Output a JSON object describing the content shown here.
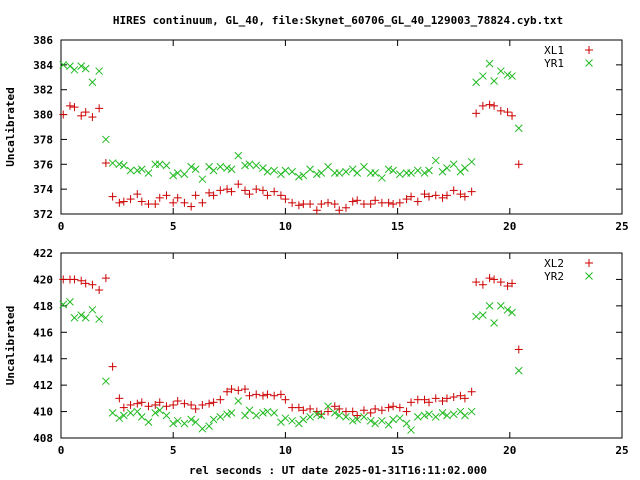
{
  "title": "HIRES continuum, GL_40, file:Skynet_60706_GL_40_129003_78824.cyb.txt",
  "xlabel": "rel seconds : UT date 2025-01-31T16:11:02.000",
  "colors": {
    "red": "#cc0000",
    "green": "#22bb22"
  },
  "chart_data": [
    {
      "type": "scatter",
      "ylabel": "Uncalibrated",
      "xlim": [
        0,
        25
      ],
      "ylim": [
        372,
        386
      ],
      "xticks": [
        0,
        5,
        10,
        15,
        20,
        25
      ],
      "yticks": [
        372,
        374,
        376,
        378,
        380,
        382,
        384,
        386
      ],
      "legend": "top-right",
      "series": [
        {
          "name": "XL1",
          "marker": "plus",
          "color": "#cc0000",
          "x": [
            0.1,
            0.4,
            0.6,
            0.9,
            1.1,
            1.4,
            1.7,
            2.0,
            2.3,
            2.6,
            2.8,
            3.1,
            3.4,
            3.6,
            3.9,
            4.2,
            4.4,
            4.7,
            5.0,
            5.2,
            5.5,
            5.8,
            6.0,
            6.3,
            6.6,
            6.8,
            7.1,
            7.4,
            7.6,
            7.9,
            8.2,
            8.4,
            8.7,
            9.0,
            9.2,
            9.5,
            9.8,
            10.0,
            10.3,
            10.6,
            10.8,
            11.1,
            11.4,
            11.6,
            11.9,
            12.2,
            12.4,
            12.7,
            13.0,
            13.2,
            13.5,
            13.8,
            14.0,
            14.3,
            14.6,
            14.8,
            15.1,
            15.4,
            15.6,
            15.9,
            16.2,
            16.4,
            16.7,
            17.0,
            17.2,
            17.5,
            17.8,
            18.0,
            18.3,
            18.5,
            18.8,
            19.1,
            19.3,
            19.6,
            19.9,
            20.1,
            20.4
          ],
          "y": [
            380.0,
            380.7,
            380.6,
            379.9,
            380.2,
            379.8,
            380.5,
            376.1,
            373.4,
            372.9,
            373.0,
            373.2,
            373.6,
            373.0,
            372.8,
            372.8,
            373.3,
            373.5,
            372.9,
            373.3,
            372.9,
            372.6,
            373.5,
            372.9,
            373.7,
            373.5,
            373.9,
            374.0,
            373.8,
            374.4,
            373.9,
            373.6,
            374.0,
            373.9,
            373.5,
            373.8,
            373.5,
            373.2,
            372.9,
            372.7,
            372.8,
            372.8,
            372.3,
            372.8,
            372.9,
            372.8,
            372.3,
            372.5,
            373.0,
            373.1,
            372.8,
            372.8,
            373.1,
            372.9,
            372.9,
            372.8,
            372.9,
            373.2,
            373.4,
            373.0,
            373.6,
            373.4,
            373.5,
            373.3,
            373.5,
            373.9,
            373.6,
            373.4,
            373.8,
            380.1,
            380.7,
            380.8,
            380.7,
            380.3,
            380.2,
            379.9,
            376.0
          ]
        },
        {
          "name": "YR1",
          "marker": "cross",
          "color": "#22bb22",
          "x": [
            0.1,
            0.4,
            0.6,
            0.9,
            1.1,
            1.4,
            1.7,
            2.0,
            2.3,
            2.6,
            2.8,
            3.1,
            3.4,
            3.6,
            3.9,
            4.2,
            4.4,
            4.7,
            5.0,
            5.2,
            5.5,
            5.8,
            6.0,
            6.3,
            6.6,
            6.8,
            7.1,
            7.4,
            7.6,
            7.9,
            8.2,
            8.4,
            8.7,
            9.0,
            9.2,
            9.5,
            9.8,
            10.0,
            10.3,
            10.6,
            10.8,
            11.1,
            11.4,
            11.6,
            11.9,
            12.2,
            12.4,
            12.7,
            13.0,
            13.2,
            13.5,
            13.8,
            14.0,
            14.3,
            14.6,
            14.8,
            15.1,
            15.4,
            15.6,
            15.9,
            16.2,
            16.4,
            16.7,
            17.0,
            17.2,
            17.5,
            17.8,
            18.0,
            18.3,
            18.5,
            18.8,
            19.1,
            19.3,
            19.6,
            19.9,
            20.1,
            20.4
          ],
          "y": [
            384.0,
            383.9,
            383.6,
            383.9,
            383.7,
            382.6,
            383.5,
            378.0,
            376.1,
            376.0,
            375.9,
            375.5,
            375.5,
            375.6,
            375.3,
            376.0,
            376.0,
            375.9,
            375.1,
            375.3,
            375.2,
            375.8,
            375.6,
            374.8,
            375.8,
            375.5,
            375.8,
            375.7,
            375.6,
            376.7,
            375.9,
            376.0,
            375.9,
            375.7,
            375.4,
            375.5,
            375.2,
            375.5,
            375.4,
            375.0,
            375.1,
            375.6,
            375.2,
            375.3,
            375.8,
            375.3,
            375.3,
            375.4,
            375.6,
            375.3,
            375.8,
            375.3,
            375.3,
            374.9,
            375.6,
            375.5,
            375.2,
            375.3,
            375.3,
            375.5,
            375.3,
            375.5,
            376.3,
            375.4,
            375.7,
            376.0,
            375.4,
            375.7,
            376.2,
            382.6,
            383.1,
            384.1,
            382.7,
            383.5,
            383.2,
            383.1,
            378.9
          ]
        }
      ]
    },
    {
      "type": "scatter",
      "ylabel": "Uncalibrated",
      "xlim": [
        0,
        25
      ],
      "ylim": [
        408,
        422
      ],
      "xticks": [
        0,
        5,
        10,
        15,
        20,
        25
      ],
      "yticks": [
        408,
        410,
        412,
        414,
        416,
        418,
        420,
        422
      ],
      "legend": "top-right",
      "series": [
        {
          "name": "XL2",
          "marker": "plus",
          "color": "#cc0000",
          "x": [
            0.1,
            0.4,
            0.6,
            0.9,
            1.1,
            1.4,
            1.7,
            2.0,
            2.3,
            2.6,
            2.8,
            3.1,
            3.4,
            3.6,
            3.9,
            4.2,
            4.4,
            4.7,
            5.0,
            5.2,
            5.5,
            5.8,
            6.0,
            6.3,
            6.6,
            6.8,
            7.1,
            7.4,
            7.6,
            7.9,
            8.2,
            8.4,
            8.7,
            9.0,
            9.2,
            9.5,
            9.8,
            10.0,
            10.3,
            10.6,
            10.8,
            11.1,
            11.4,
            11.6,
            11.9,
            12.2,
            12.4,
            12.7,
            13.0,
            13.2,
            13.5,
            13.8,
            14.0,
            14.3,
            14.6,
            14.8,
            15.1,
            15.4,
            15.6,
            15.9,
            16.2,
            16.4,
            16.7,
            17.0,
            17.2,
            17.5,
            17.8,
            18.0,
            18.3,
            18.5,
            18.8,
            19.1,
            19.3,
            19.6,
            19.9,
            20.1,
            20.4
          ],
          "y": [
            420.0,
            420.0,
            420.0,
            419.9,
            419.7,
            419.6,
            419.2,
            420.1,
            413.4,
            411.0,
            410.3,
            410.5,
            410.6,
            410.7,
            410.4,
            410.5,
            410.7,
            410.4,
            410.5,
            410.8,
            410.6,
            410.5,
            410.2,
            410.5,
            410.6,
            410.7,
            410.9,
            411.5,
            411.7,
            411.6,
            411.7,
            411.2,
            411.3,
            411.2,
            411.3,
            411.2,
            411.3,
            410.9,
            410.3,
            410.3,
            410.1,
            410.2,
            410.0,
            409.8,
            410.0,
            410.4,
            410.2,
            410.0,
            410.0,
            409.7,
            410.1,
            409.9,
            410.2,
            410.1,
            410.3,
            410.4,
            410.3,
            410.0,
            410.7,
            410.9,
            410.9,
            410.7,
            411.0,
            410.8,
            411.0,
            411.1,
            411.2,
            411.0,
            411.5,
            419.8,
            419.6,
            420.1,
            420.0,
            419.8,
            419.5,
            419.7,
            414.7
          ]
        },
        {
          "name": "YR2",
          "marker": "cross",
          "color": "#22bb22",
          "x": [
            0.1,
            0.4,
            0.6,
            0.9,
            1.1,
            1.4,
            1.7,
            2.0,
            2.3,
            2.6,
            2.8,
            3.1,
            3.4,
            3.6,
            3.9,
            4.2,
            4.4,
            4.7,
            5.0,
            5.2,
            5.5,
            5.8,
            6.0,
            6.3,
            6.6,
            6.8,
            7.1,
            7.4,
            7.6,
            7.9,
            8.2,
            8.4,
            8.7,
            9.0,
            9.2,
            9.5,
            9.8,
            10.0,
            10.3,
            10.6,
            10.8,
            11.1,
            11.4,
            11.6,
            11.9,
            12.2,
            12.4,
            12.7,
            13.0,
            13.2,
            13.5,
            13.8,
            14.0,
            14.3,
            14.6,
            14.8,
            15.1,
            15.4,
            15.6,
            15.9,
            16.2,
            16.4,
            16.7,
            17.0,
            17.2,
            17.5,
            17.8,
            18.0,
            18.3,
            18.5,
            18.8,
            19.1,
            19.3,
            19.6,
            19.9,
            20.1,
            20.4
          ],
          "y": [
            418.1,
            418.3,
            417.1,
            417.3,
            417.1,
            417.7,
            417.0,
            412.3,
            409.9,
            409.5,
            409.7,
            409.9,
            410.0,
            409.6,
            409.2,
            409.9,
            410.1,
            409.7,
            409.1,
            409.3,
            409.1,
            409.4,
            409.2,
            408.7,
            408.9,
            409.4,
            409.6,
            409.8,
            409.9,
            410.8,
            409.7,
            410.1,
            409.7,
            409.9,
            410.0,
            409.9,
            409.2,
            409.5,
            409.3,
            409.1,
            409.4,
            409.6,
            409.8,
            409.7,
            410.4,
            409.9,
            409.7,
            409.6,
            409.3,
            409.4,
            409.6,
            409.3,
            409.1,
            409.3,
            409.0,
            409.4,
            409.5,
            409.1,
            408.6,
            409.6,
            409.7,
            409.8,
            409.6,
            409.9,
            409.7,
            409.8,
            410.0,
            409.7,
            410.0,
            417.2,
            417.3,
            418.0,
            416.7,
            418.0,
            417.7,
            417.5,
            413.1
          ]
        }
      ]
    }
  ]
}
